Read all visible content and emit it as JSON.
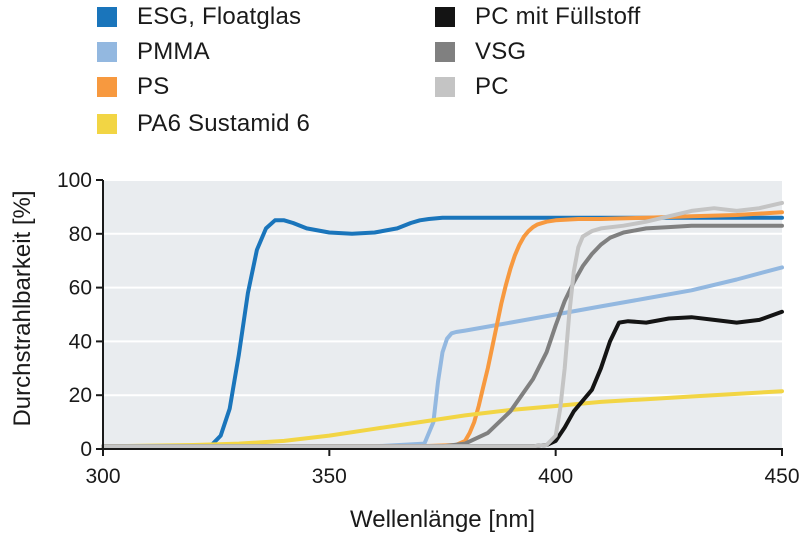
{
  "chart_data": {
    "type": "line",
    "xlabel": "Wellenlänge [nm]",
    "ylabel": "Durchstrahlbarkeit [%]",
    "xlim": [
      300,
      450
    ],
    "ylim": [
      0,
      100
    ],
    "xticks": [
      "300",
      "350",
      "400",
      "450"
    ],
    "yticks": [
      "0",
      "20",
      "40",
      "60",
      "80",
      "100"
    ],
    "grid": "horizontal",
    "legend_position": "top",
    "background_color": "#e9ecef",
    "series": [
      {
        "name": "ESG, Floatglas",
        "color": "#1a75bb",
        "x": [
          300,
          320,
          324,
          326,
          328,
          330,
          332,
          334,
          336,
          338,
          340,
          342,
          345,
          350,
          355,
          360,
          365,
          368,
          370,
          372,
          375,
          380,
          390,
          400,
          420,
          450
        ],
        "y": [
          1,
          1,
          1.5,
          5,
          15,
          35,
          58,
          74,
          82,
          85,
          85,
          84,
          82,
          80.5,
          80,
          80.5,
          82,
          84,
          85,
          85.5,
          86,
          86,
          86,
          86,
          86,
          86
        ]
      },
      {
        "name": "PMMA",
        "color": "#93b8e0",
        "x": [
          300,
          360,
          371,
          373,
          374,
          375,
          376,
          377,
          378,
          380,
          385,
          390,
          400,
          410,
          420,
          430,
          440,
          450
        ],
        "y": [
          1,
          1,
          2,
          10,
          25,
          36,
          41,
          43,
          43.5,
          44,
          45.5,
          47,
          50,
          53,
          56,
          59,
          63,
          67.5
        ]
      },
      {
        "name": "PS",
        "color": "#f7993f",
        "x": [
          300,
          370,
          378,
          380,
          381,
          382,
          383,
          384,
          385,
          386,
          387,
          388,
          389,
          390,
          391,
          392,
          393,
          394,
          395,
          396,
          398,
          400,
          405,
          410,
          420,
          430,
          440,
          450
        ],
        "y": [
          1,
          1,
          1.5,
          3,
          6,
          10,
          16,
          23,
          30,
          38,
          46,
          54,
          61,
          67,
          72,
          76,
          79,
          81,
          82.5,
          83.5,
          84.5,
          85,
          85.5,
          85.5,
          86,
          86.5,
          87,
          88
        ]
      },
      {
        "name": "PA6 Sustamid 6",
        "color": "#f2d544",
        "x": [
          300,
          320,
          330,
          340,
          350,
          360,
          370,
          380,
          390,
          400,
          410,
          420,
          430,
          440,
          450
        ],
        "y": [
          1,
          1.5,
          2,
          3,
          5,
          7.5,
          10,
          12.5,
          14.5,
          16,
          17.5,
          18.5,
          19.5,
          20.5,
          21.5
        ]
      },
      {
        "name": "PC mit Füllstoff",
        "color": "#141414",
        "x": [
          300,
          395,
          398,
          400,
          402,
          404,
          406,
          408,
          410,
          412,
          414,
          416,
          420,
          425,
          430,
          435,
          440,
          445,
          450
        ],
        "y": [
          1,
          1,
          1.5,
          3,
          8,
          14,
          18,
          22,
          30,
          40,
          47,
          47.5,
          47,
          48.5,
          49,
          48,
          47,
          48,
          51
        ]
      },
      {
        "name": "VSG",
        "color": "#808080",
        "x": [
          300,
          375,
          380,
          385,
          390,
          395,
          398,
          400,
          402,
          404,
          406,
          408,
          410,
          412,
          415,
          420,
          425,
          430,
          440,
          450
        ],
        "y": [
          1,
          1,
          2,
          6,
          14,
          26,
          36,
          46,
          55,
          62,
          68,
          72.5,
          76,
          78.5,
          80.5,
          82,
          82.5,
          83,
          83,
          83
        ]
      },
      {
        "name": "PC",
        "color": "#c4c4c4",
        "x": [
          300,
          395,
          398,
          400,
          401,
          402,
          403,
          404,
          405,
          406,
          408,
          410,
          415,
          420,
          425,
          430,
          435,
          440,
          445,
          450
        ],
        "y": [
          1,
          1,
          1.5,
          5,
          15,
          30,
          50,
          66,
          75,
          79,
          81,
          82,
          83,
          84.5,
          86.5,
          88.5,
          89.5,
          88.5,
          89.5,
          91.5
        ]
      }
    ]
  },
  "legend": {
    "left": [
      "ESG, Floatglas",
      "PMMA",
      "PS",
      "PA6 Sustamid 6"
    ],
    "right": [
      "PC mit Füllstoff",
      "VSG",
      "PC"
    ]
  }
}
